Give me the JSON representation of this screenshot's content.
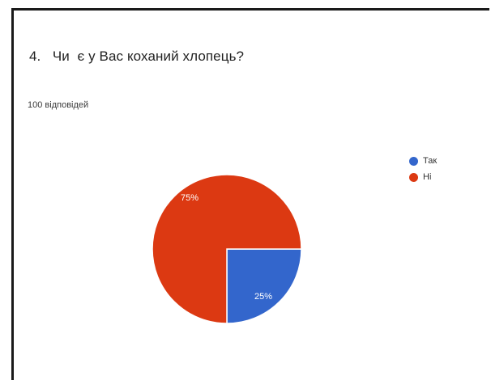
{
  "question": {
    "text": "4.   Чи  є у Вас коханий хлопець?"
  },
  "responses_label": "100 відповідей",
  "colors": {
    "tak": "#3366cc",
    "ni": "#dc3912"
  },
  "chart_data": {
    "type": "pie",
    "title": "",
    "slices": [
      {
        "label": "Так",
        "value": 25,
        "display": "25%",
        "color": "#3366cc"
      },
      {
        "label": "Ні",
        "value": 75,
        "display": "75%",
        "color": "#dc3912"
      }
    ],
    "legend_position": "right"
  }
}
